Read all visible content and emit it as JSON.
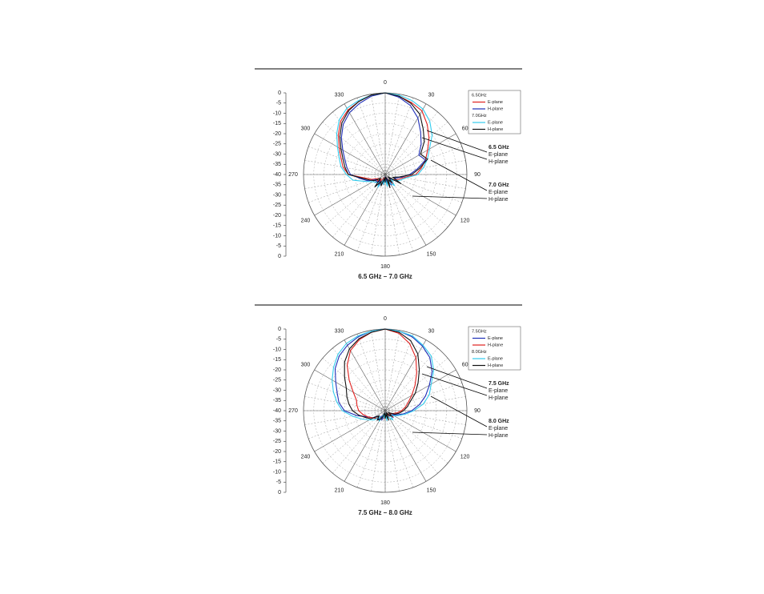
{
  "chart_data": [
    {
      "type": "polar",
      "caption": "6.5 GHz – 7.0 GHz",
      "rlim": [
        -40,
        0
      ],
      "rticks": [
        0,
        -5,
        -10,
        -15,
        -20,
        -25,
        -30,
        -35,
        -40
      ],
      "thetaticks": [
        0,
        30,
        60,
        90,
        120,
        150,
        180,
        210,
        240,
        270,
        300,
        330
      ],
      "theta": [
        0,
        10,
        20,
        30,
        40,
        50,
        60,
        70,
        80,
        90,
        100,
        110,
        120,
        130,
        140,
        150,
        160,
        170,
        180,
        190,
        200,
        210,
        220,
        230,
        240,
        250,
        260,
        270,
        280,
        290,
        300,
        310,
        320,
        330,
        340,
        350
      ],
      "groups": [
        {
          "name": "6.5GHz",
          "series": [
            {
              "name": "E-plane",
              "color": "#e0201e",
              "values": [
                0,
                -1,
                -2.5,
                -4,
                -8,
                -12,
                -16,
                -19,
                -22,
                -25,
                -31,
                -33,
                -35,
                -36,
                -34,
                -37,
                -38,
                -35,
                -39,
                -36,
                -38,
                -34,
                -37,
                -35,
                -36,
                -33,
                -30,
                -22,
                -19,
                -17,
                -14,
                -10,
                -6,
                -3.5,
                -2,
                -0.5
              ]
            },
            {
              "name": "H-plane",
              "color": "#1f2fb8",
              "values": [
                0,
                -1.5,
                -4,
                -8,
                -13,
                -17,
                -21,
                -19,
                -24,
                -28,
                -32,
                -35,
                -33,
                -37,
                -36,
                -34,
                -38,
                -36,
                -39,
                -35,
                -37,
                -33,
                -36,
                -34,
                -35,
                -31,
                -28,
                -23,
                -21,
                -19,
                -16,
                -12,
                -8,
                -5,
                -3,
                -1
              ]
            }
          ]
        },
        {
          "name": "7.0GHz",
          "series": [
            {
              "name": "E-plane",
              "color": "#33ccee",
              "values": [
                0,
                -0.5,
                -1.5,
                -3,
                -6,
                -10,
                -15,
                -18,
                -21,
                -24,
                -30,
                -32,
                -34,
                -36,
                -33,
                -35,
                -37,
                -34,
                -38,
                -35,
                -37,
                -33,
                -35,
                -34,
                -33,
                -30,
                -24,
                -21,
                -18,
                -16,
                -13,
                -9,
                -5,
                -2.5,
                -1.5,
                -0.5
              ]
            },
            {
              "name": "H-plane",
              "color": "#111111",
              "values": [
                0,
                -1,
                -3,
                -6,
                -11,
                -15,
                -20,
                -18,
                -23,
                -27,
                -33,
                -36,
                -31,
                -38,
                -35,
                -37,
                -33,
                -39,
                -36,
                -38,
                -34,
                -36,
                -32,
                -37,
                -34,
                -32,
                -29,
                -22,
                -20,
                -18,
                -15,
                -11,
                -7,
                -4,
                -2,
                -0.5
              ]
            }
          ]
        }
      ],
      "annotations": [
        [
          "6.5 GHz",
          "E-plane",
          "H-plane"
        ],
        [
          "7.0 GHz",
          "E-plane",
          "H-plane"
        ]
      ]
    },
    {
      "type": "polar",
      "caption": "7.5 GHz – 8.0 GHz",
      "rlim": [
        -40,
        0
      ],
      "rticks": [
        0,
        -5,
        -10,
        -15,
        -20,
        -25,
        -30,
        -35,
        -40
      ],
      "thetaticks": [
        0,
        30,
        60,
        90,
        120,
        150,
        180,
        210,
        240,
        270,
        300,
        330
      ],
      "theta": [
        0,
        10,
        20,
        30,
        40,
        50,
        60,
        70,
        80,
        90,
        100,
        110,
        120,
        130,
        140,
        150,
        160,
        170,
        180,
        190,
        200,
        210,
        220,
        230,
        240,
        250,
        260,
        270,
        280,
        290,
        300,
        310,
        320,
        330,
        340,
        350
      ],
      "groups": [
        {
          "name": "7.5GHz",
          "series": [
            {
              "name": "E-plane",
              "color": "#1f2fb8",
              "values": [
                0,
                -0.5,
                -1.5,
                -3.5,
                -6,
                -10,
                -15,
                -19,
                -23,
                -27,
                -31,
                -34,
                -36,
                -35,
                -37,
                -38,
                -36,
                -39,
                -37,
                -38,
                -35,
                -37,
                -34,
                -36,
                -33,
                -31,
                -26,
                -20,
                -17,
                -15,
                -12,
                -8,
                -5,
                -3,
                -1.5,
                -0.5
              ]
            },
            {
              "name": "H-plane",
              "color": "#e0201e",
              "values": [
                0,
                -1.5,
                -5,
                -10,
                -16,
                -21,
                -25,
                -28,
                -30,
                -32,
                -34,
                -36,
                -37,
                -35,
                -38,
                -36,
                -39,
                -37,
                -38,
                -36,
                -37,
                -35,
                -36,
                -34,
                -33,
                -31,
                -29,
                -27,
                -26,
                -25,
                -22,
                -17,
                -11,
                -6,
                -3,
                -1
              ]
            }
          ]
        },
        {
          "name": "8.0GHz",
          "series": [
            {
              "name": "E-plane",
              "color": "#33ccee",
              "values": [
                0,
                -0.5,
                -1,
                -3,
                -5,
                -9,
                -14,
                -17,
                -21,
                -26,
                -30,
                -33,
                -35,
                -37,
                -34,
                -36,
                -38,
                -35,
                -39,
                -36,
                -38,
                -34,
                -36,
                -33,
                -31,
                -28,
                -24,
                -19,
                -16,
                -13,
                -10,
                -7,
                -4,
                -2,
                -1,
                -0.5
              ]
            },
            {
              "name": "H-plane",
              "color": "#111111",
              "values": [
                0,
                -1,
                -3.5,
                -8,
                -14,
                -19,
                -23,
                -27,
                -29,
                -31,
                -33,
                -35,
                -38,
                -36,
                -37,
                -39,
                -35,
                -38,
                -36,
                -39,
                -37,
                -35,
                -34,
                -36,
                -32,
                -30,
                -27,
                -24,
                -22,
                -20,
                -18,
                -14,
                -9,
                -5,
                -2.5,
                -1
              ]
            }
          ]
        }
      ],
      "annotations": [
        [
          "7.5 GHz",
          "E-plane",
          "H-plane"
        ],
        [
          "8.0 GHz",
          "E-plane",
          "H-plane"
        ]
      ]
    }
  ]
}
